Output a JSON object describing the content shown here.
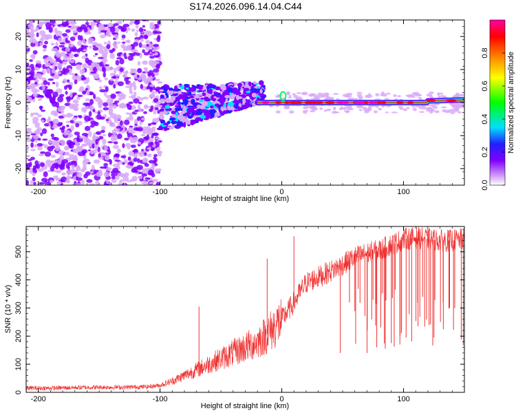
{
  "title": "S174.2026.096.14.04.C44",
  "chart_data": [
    {
      "type": "heatmap",
      "xlabel": "Height of straight line (km)",
      "ylabel": "Frequency (Hz)",
      "xlim": [
        -210,
        150
      ],
      "ylim": [
        -25,
        25
      ],
      "xticks": [
        -200,
        -100,
        0,
        100
      ],
      "yticks": [
        -20,
        -10,
        0,
        10,
        20
      ],
      "colorbar": {
        "label": "Normalized spectral amplitude",
        "range": [
          0.0,
          1.0
        ],
        "ticks": [
          "0.0",
          "0.2",
          "0.4",
          "0.6",
          "0.8"
        ],
        "tick_values": [
          0.0,
          0.2,
          0.4,
          0.6,
          0.8
        ],
        "colors": [
          "#ffffff",
          "#d8a8f8",
          "#8000ff",
          "#2020ff",
          "#00e0ff",
          "#00ff00",
          "#ffff00",
          "#ff8000",
          "#ff0000",
          "#ff00a0"
        ]
      },
      "features": [
        {
          "name": "broadband noise",
          "x_range": [
            -210,
            -100
          ],
          "freq_range": [
            -25,
            25
          ],
          "amplitude": 0.1
        },
        {
          "name": "scattered band",
          "x_range": [
            -100,
            -15
          ],
          "freq_range": [
            -8,
            8
          ],
          "amplitude": 0.25
        },
        {
          "name": "signal line",
          "x_range": [
            -20,
            150
          ],
          "freq": [
            0,
            0.5
          ],
          "amplitude": 0.9
        }
      ]
    },
    {
      "type": "line",
      "xlabel": "Height of straight line (km)",
      "ylabel": "SNR (10 * v/v)",
      "xlim": [
        -210,
        150
      ],
      "ylim": [
        0,
        590
      ],
      "xticks": [
        -200,
        -100,
        0,
        100
      ],
      "yticks": [
        0,
        100,
        200,
        300,
        400,
        500
      ],
      "color": "#f03030",
      "series": [
        {
          "name": "SNR",
          "x": [
            -210,
            -190,
            -170,
            -150,
            -130,
            -110,
            -100,
            -90,
            -80,
            -70,
            -60,
            -50,
            -40,
            -30,
            -20,
            -10,
            0,
            10,
            20,
            30,
            40,
            50,
            60,
            70,
            80,
            90,
            100,
            110,
            120,
            130,
            140,
            150
          ],
          "y": [
            15,
            15,
            17,
            18,
            18,
            20,
            25,
            40,
            60,
            80,
            100,
            120,
            140,
            160,
            180,
            215,
            260,
            320,
            390,
            410,
            430,
            455,
            480,
            495,
            505,
            525,
            545,
            550,
            545,
            540,
            540,
            545
          ]
        }
      ],
      "spikes": [
        {
          "x": -68,
          "y": 305
        },
        {
          "x": -12,
          "y": 475
        },
        {
          "x": 10,
          "y": 555
        },
        {
          "x": 48,
          "y": 140
        },
        {
          "x": 70,
          "y": 140
        },
        {
          "x": 78,
          "y": 160
        },
        {
          "x": 85,
          "y": 155
        },
        {
          "x": 90,
          "y": 175
        },
        {
          "x": 97,
          "y": 170
        },
        {
          "x": 125,
          "y": 195
        },
        {
          "x": 150,
          "y": 175
        }
      ]
    }
  ]
}
